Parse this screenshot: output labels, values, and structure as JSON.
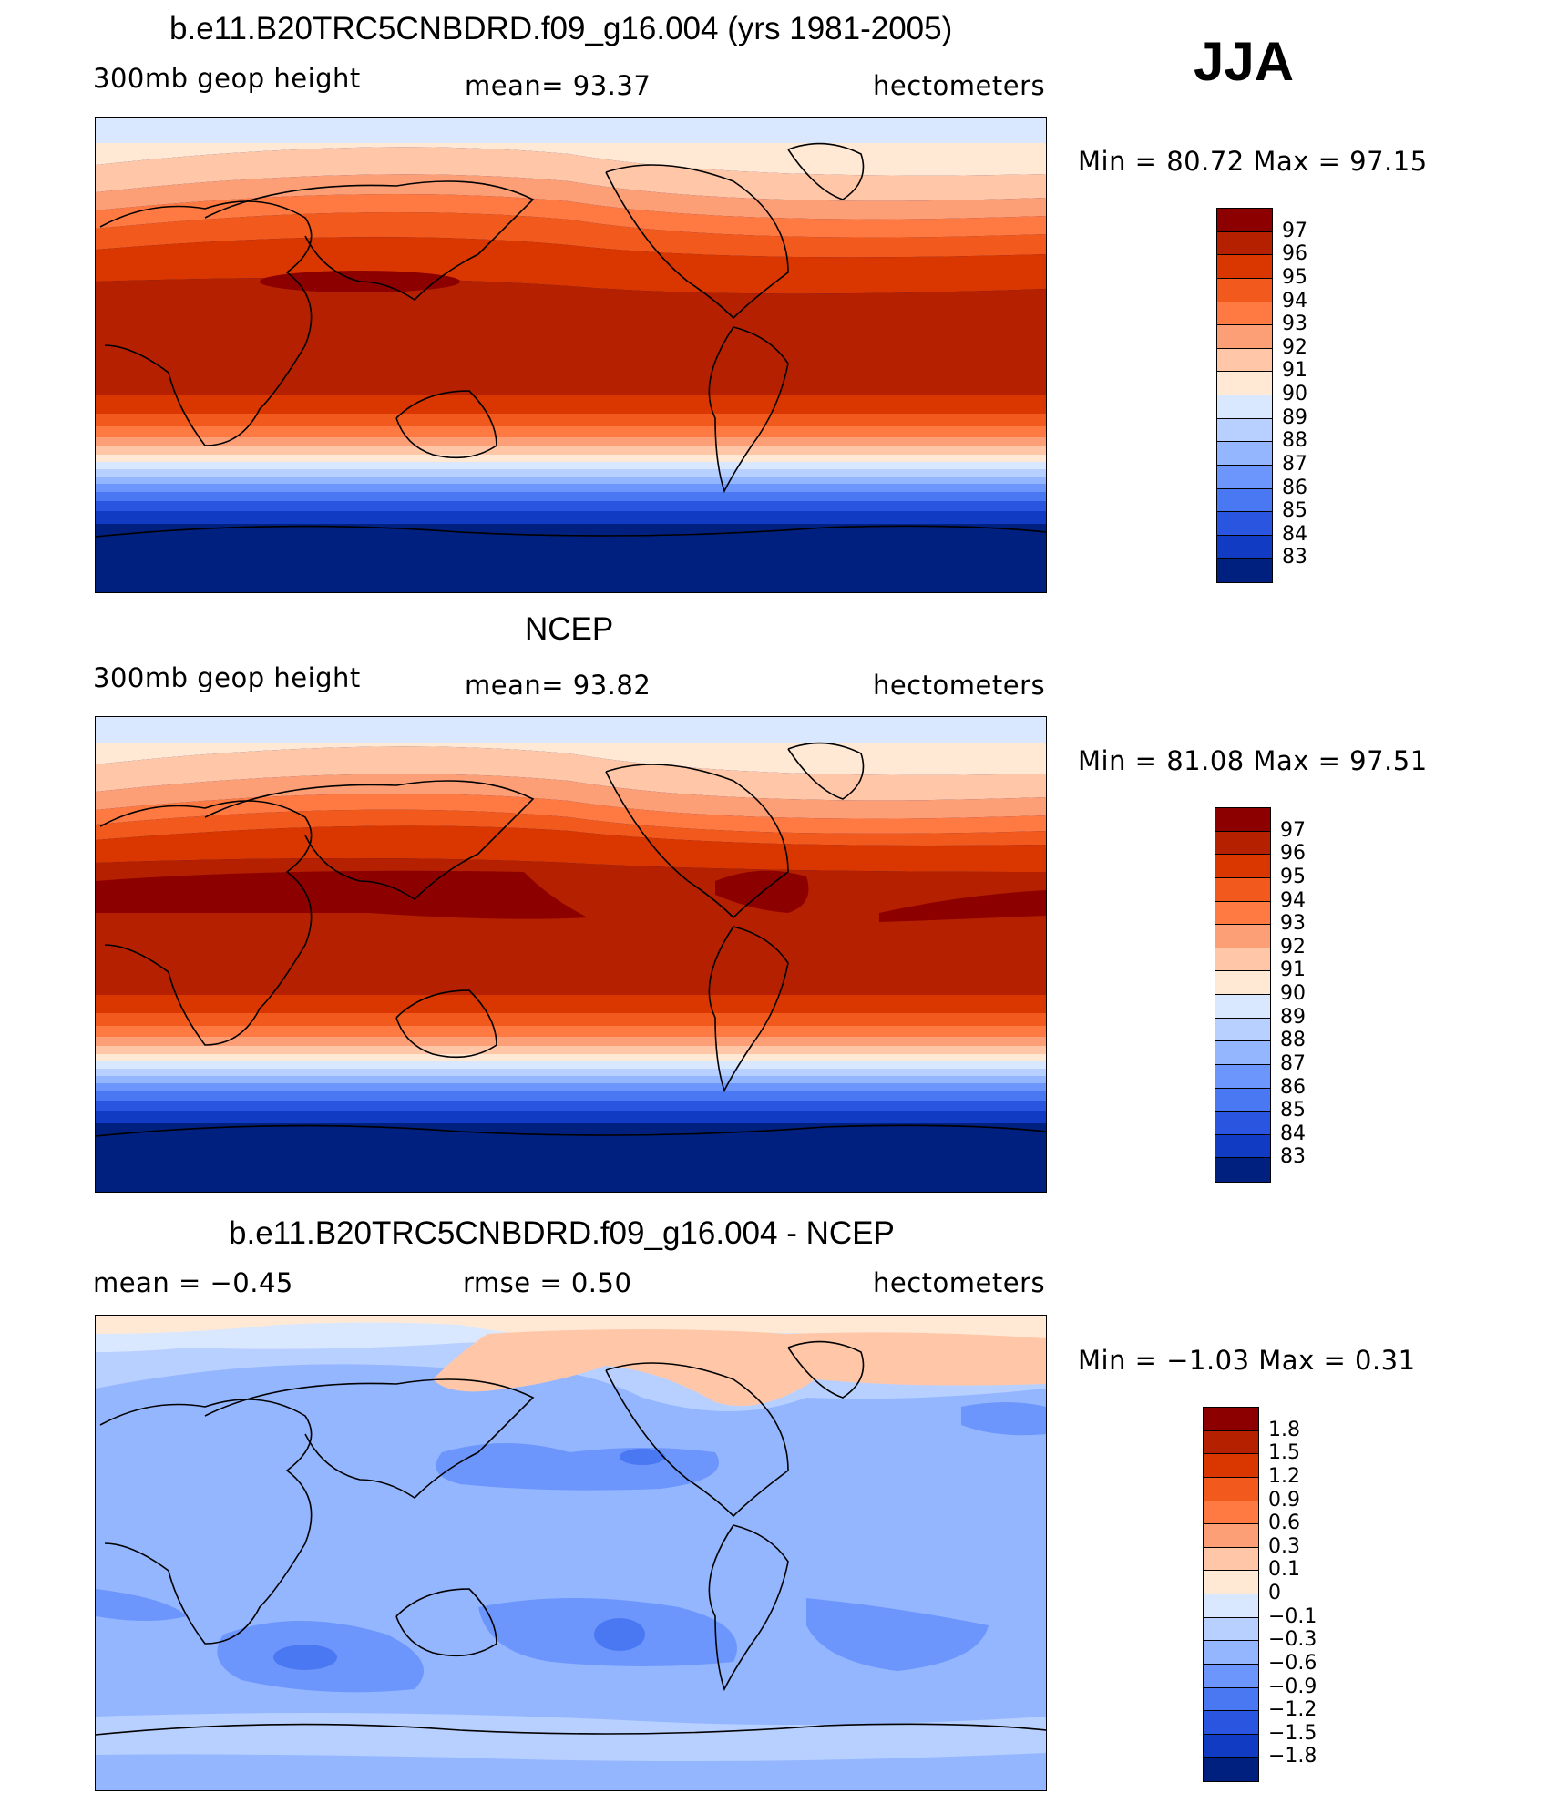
{
  "season": "JJA",
  "panels": [
    {
      "title": "b.e11.B20TRC5CNBDRD.f09_g16.004 (yrs 1981-2005)",
      "left_label": "300mb  geop  height",
      "center_label": "mean=   93.37",
      "units": "hectometers",
      "minmax": "Min  =    80.72  Max  =    97.15",
      "ticks": [
        "97",
        "96",
        "95",
        "94",
        "93",
        "92",
        "91",
        "90",
        "89",
        "88",
        "87",
        "86",
        "85",
        "84",
        "83"
      ],
      "colors": [
        "#8c0000",
        "#b52000",
        "#d93600",
        "#f15a1c",
        "#ff7a42",
        "#fd9f76",
        "#ffc7a8",
        "#ffe9d4",
        "#d9e8ff",
        "#b8d0ff",
        "#94b6ff",
        "#6d96fc",
        "#4a77f2",
        "#2a55e0",
        "#123bc4",
        "#00207f"
      ]
    },
    {
      "title": "NCEP",
      "left_label": "300mb  geop  height",
      "center_label": "mean=   93.82",
      "units": "hectometers",
      "minmax": "Min  =    81.08  Max  =    97.51",
      "ticks": [
        "97",
        "96",
        "95",
        "94",
        "93",
        "92",
        "91",
        "90",
        "89",
        "88",
        "87",
        "86",
        "85",
        "84",
        "83"
      ],
      "colors": [
        "#8c0000",
        "#b52000",
        "#d93600",
        "#f15a1c",
        "#ff7a42",
        "#fd9f76",
        "#ffc7a8",
        "#ffe9d4",
        "#d9e8ff",
        "#b8d0ff",
        "#94b6ff",
        "#6d96fc",
        "#4a77f2",
        "#2a55e0",
        "#123bc4",
        "#00207f"
      ]
    },
    {
      "title": "b.e11.B20TRC5CNBDRD.f09_g16.004 - NCEP",
      "left_label": "mean  =    −0.45",
      "center_label": "rmse  =     0.50",
      "units": "hectometers",
      "minmax": "Min  =   −1.03  Max  =      0.31",
      "ticks": [
        "1.8",
        "1.5",
        "1.2",
        "0.9",
        "0.6",
        "0.3",
        "0.1",
        "0",
        "−0.1",
        "−0.3",
        "−0.6",
        "−0.9",
        "−1.2",
        "−1.5",
        "−1.8"
      ],
      "colors": [
        "#8c0000",
        "#b52000",
        "#d93600",
        "#f15a1c",
        "#ff7a42",
        "#fd9f76",
        "#ffc7a8",
        "#ffe9d4",
        "#d9e8ff",
        "#b8d0ff",
        "#94b6ff",
        "#6d96fc",
        "#4a77f2",
        "#2a55e0",
        "#123bc4",
        "#00207f"
      ]
    }
  ]
}
